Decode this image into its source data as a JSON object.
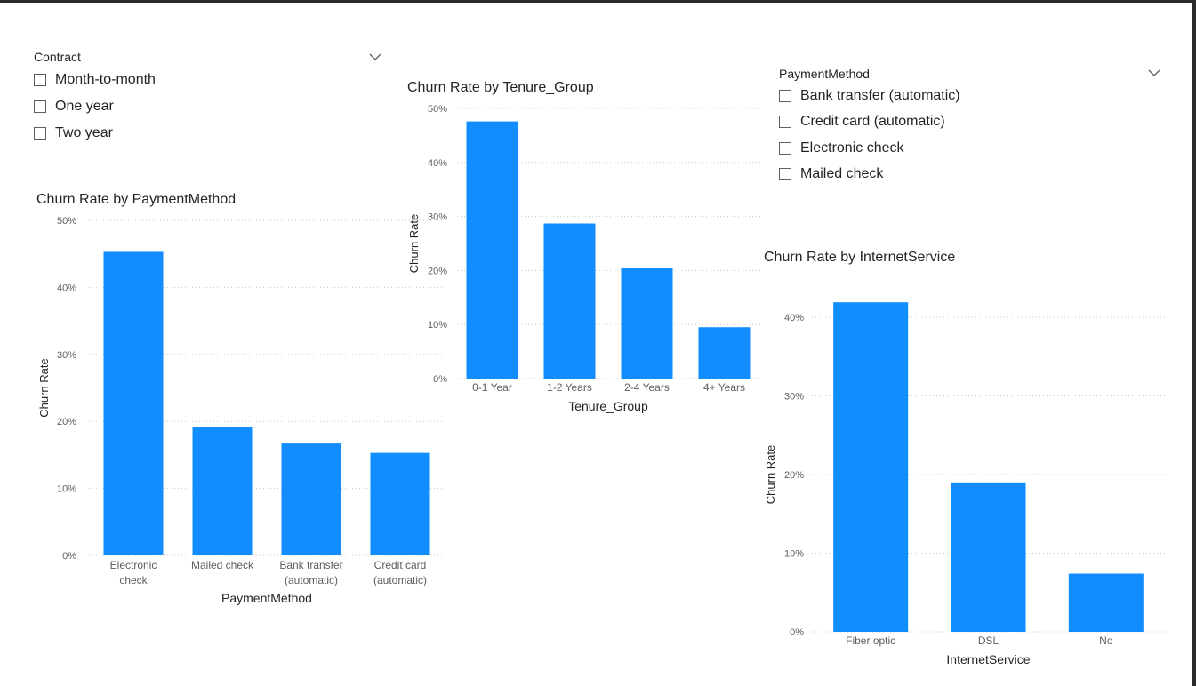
{
  "colors": {
    "bar": "#118DFF",
    "grid": "#c8c8c8",
    "tick": "#605e5c",
    "axis_title": "#252423"
  },
  "slicers": {
    "contract": {
      "title": "Contract",
      "icon": "chevron-down-icon",
      "items": [
        {
          "label": "Month-to-month",
          "checked": false
        },
        {
          "label": "One year",
          "checked": false
        },
        {
          "label": "Two year",
          "checked": false
        }
      ]
    },
    "payment": {
      "title": "PaymentMethod",
      "icon": "chevron-down-icon",
      "items": [
        {
          "label": "Bank transfer (automatic)",
          "checked": false
        },
        {
          "label": "Credit card (automatic)",
          "checked": false
        },
        {
          "label": "Electronic check",
          "checked": false
        },
        {
          "label": "Mailed check",
          "checked": false
        }
      ]
    }
  },
  "chart_data": [
    {
      "id": "payment",
      "type": "bar",
      "title": "Churn Rate by PaymentMethod",
      "xlabel": "PaymentMethod",
      "ylabel": "Churn Rate",
      "categories": [
        [
          "Electronic",
          "check"
        ],
        [
          "Mailed check"
        ],
        [
          "Bank transfer",
          "(automatic)"
        ],
        [
          "Credit card",
          "(automatic)"
        ]
      ],
      "values": [
        0.453,
        0.192,
        0.167,
        0.153
      ],
      "yticks": [
        0,
        0.1,
        0.2,
        0.3,
        0.4,
        0.5
      ],
      "ytick_labels": [
        "0%",
        "10%",
        "20%",
        "30%",
        "40%",
        "50%"
      ],
      "ylim": [
        0,
        0.5
      ],
      "grid": true
    },
    {
      "id": "tenure",
      "type": "bar",
      "title": "Churn Rate by Tenure_Group",
      "xlabel": "Tenure_Group",
      "ylabel": "Churn Rate",
      "categories": [
        [
          "0-1 Year"
        ],
        [
          "1-2 Years"
        ],
        [
          "2-4 Years"
        ],
        [
          "4+ Years"
        ]
      ],
      "values": [
        0.476,
        0.287,
        0.204,
        0.095
      ],
      "yticks": [
        0,
        0.1,
        0.2,
        0.3,
        0.4,
        0.5
      ],
      "ytick_labels": [
        "0%",
        "10%",
        "20%",
        "30%",
        "40%",
        "50%"
      ],
      "ylim": [
        0,
        0.5
      ],
      "grid": true
    },
    {
      "id": "internet",
      "type": "bar",
      "title": "Churn Rate by InternetService",
      "xlabel": "InternetService",
      "ylabel": "Churn Rate",
      "categories": [
        [
          "Fiber optic"
        ],
        [
          "DSL"
        ],
        [
          "No"
        ]
      ],
      "values": [
        0.419,
        0.19,
        0.074
      ],
      "yticks": [
        0,
        0.1,
        0.2,
        0.3,
        0.4
      ],
      "ytick_labels": [
        "0%",
        "10%",
        "20%",
        "30%",
        "40%"
      ],
      "ylim": [
        0,
        0.4
      ],
      "grid": true
    }
  ]
}
